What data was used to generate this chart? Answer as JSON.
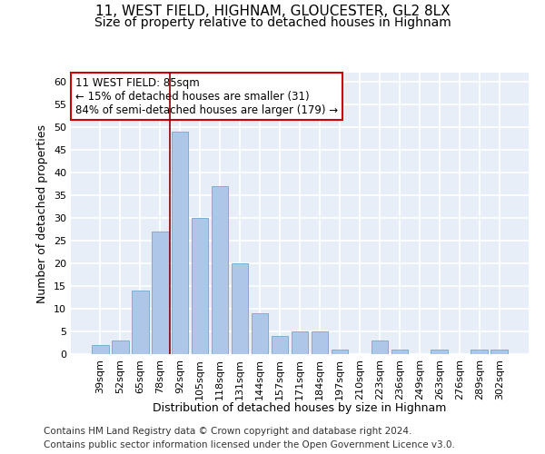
{
  "title": "11, WEST FIELD, HIGHNAM, GLOUCESTER, GL2 8LX",
  "subtitle": "Size of property relative to detached houses in Highnam",
  "xlabel": "Distribution of detached houses by size in Highnam",
  "ylabel": "Number of detached properties",
  "categories": [
    "39sqm",
    "52sqm",
    "65sqm",
    "78sqm",
    "92sqm",
    "105sqm",
    "118sqm",
    "131sqm",
    "144sqm",
    "157sqm",
    "171sqm",
    "184sqm",
    "197sqm",
    "210sqm",
    "223sqm",
    "236sqm",
    "249sqm",
    "263sqm",
    "276sqm",
    "289sqm",
    "302sqm"
  ],
  "values": [
    2,
    3,
    14,
    27,
    49,
    30,
    37,
    20,
    9,
    4,
    5,
    5,
    1,
    0,
    3,
    1,
    0,
    1,
    0,
    1,
    1
  ],
  "bar_color": "#aec6e8",
  "bar_edgecolor": "#7aafd4",
  "vline_x": 3.5,
  "vline_color": "#8b0000",
  "annotation_line1": "11 WEST FIELD: 85sqm",
  "annotation_line2": "← 15% of detached houses are smaller (31)",
  "annotation_line3": "84% of semi-detached houses are larger (179) →",
  "annotation_box_color": "#ffffff",
  "annotation_box_edgecolor": "#cc0000",
  "ylim": [
    0,
    62
  ],
  "yticks": [
    0,
    5,
    10,
    15,
    20,
    25,
    30,
    35,
    40,
    45,
    50,
    55,
    60
  ],
  "background_color": "#e8eef7",
  "grid_color": "#ffffff",
  "footer_line1": "Contains HM Land Registry data © Crown copyright and database right 2024.",
  "footer_line2": "Contains public sector information licensed under the Open Government Licence v3.0.",
  "title_fontsize": 11,
  "subtitle_fontsize": 10,
  "xlabel_fontsize": 9,
  "ylabel_fontsize": 9,
  "tick_fontsize": 8,
  "annotation_fontsize": 8.5,
  "footer_fontsize": 7.5
}
